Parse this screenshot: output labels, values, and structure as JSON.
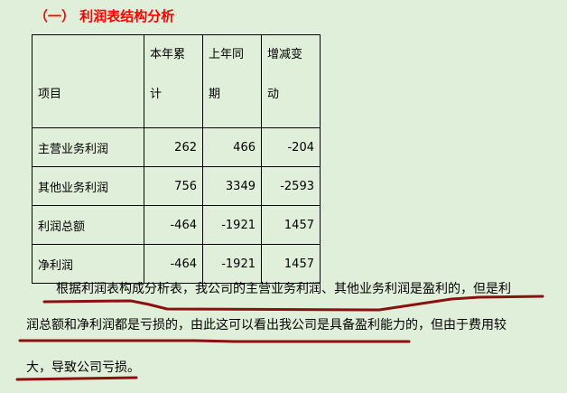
{
  "title": "（一） 利润表结构分析",
  "table": {
    "headers": [
      [
        "项目"
      ],
      [
        "本年累",
        "计"
      ],
      [
        "上年同",
        "期"
      ],
      [
        "增减变",
        "动"
      ]
    ],
    "rows": [
      {
        "item": "主营业务利润",
        "current": "262",
        "prior": "466",
        "change": "-204"
      },
      {
        "item": "其他业务利润",
        "current": "756",
        "prior": "3349",
        "change": "-2593"
      },
      {
        "item": "利润总额",
        "current": "-464",
        "prior": "-1921",
        "change": "1457"
      },
      {
        "item": "净利润",
        "current": "-464",
        "prior": "-1921",
        "change": "1457"
      }
    ]
  },
  "paragraph": {
    "line1": "根据利润表构成分析表，我公司的主营业务利润、其他业务利润是盈利的，但是利",
    "line2": "润总额和净利润都是亏损的，由此这可以看出我公司是具备盈利能力的，但由于费用较",
    "line3": "大，导致公司亏损。"
  },
  "colors": {
    "title": "#ff0000",
    "underline": "#8b1010",
    "background": "#e0efd9"
  }
}
